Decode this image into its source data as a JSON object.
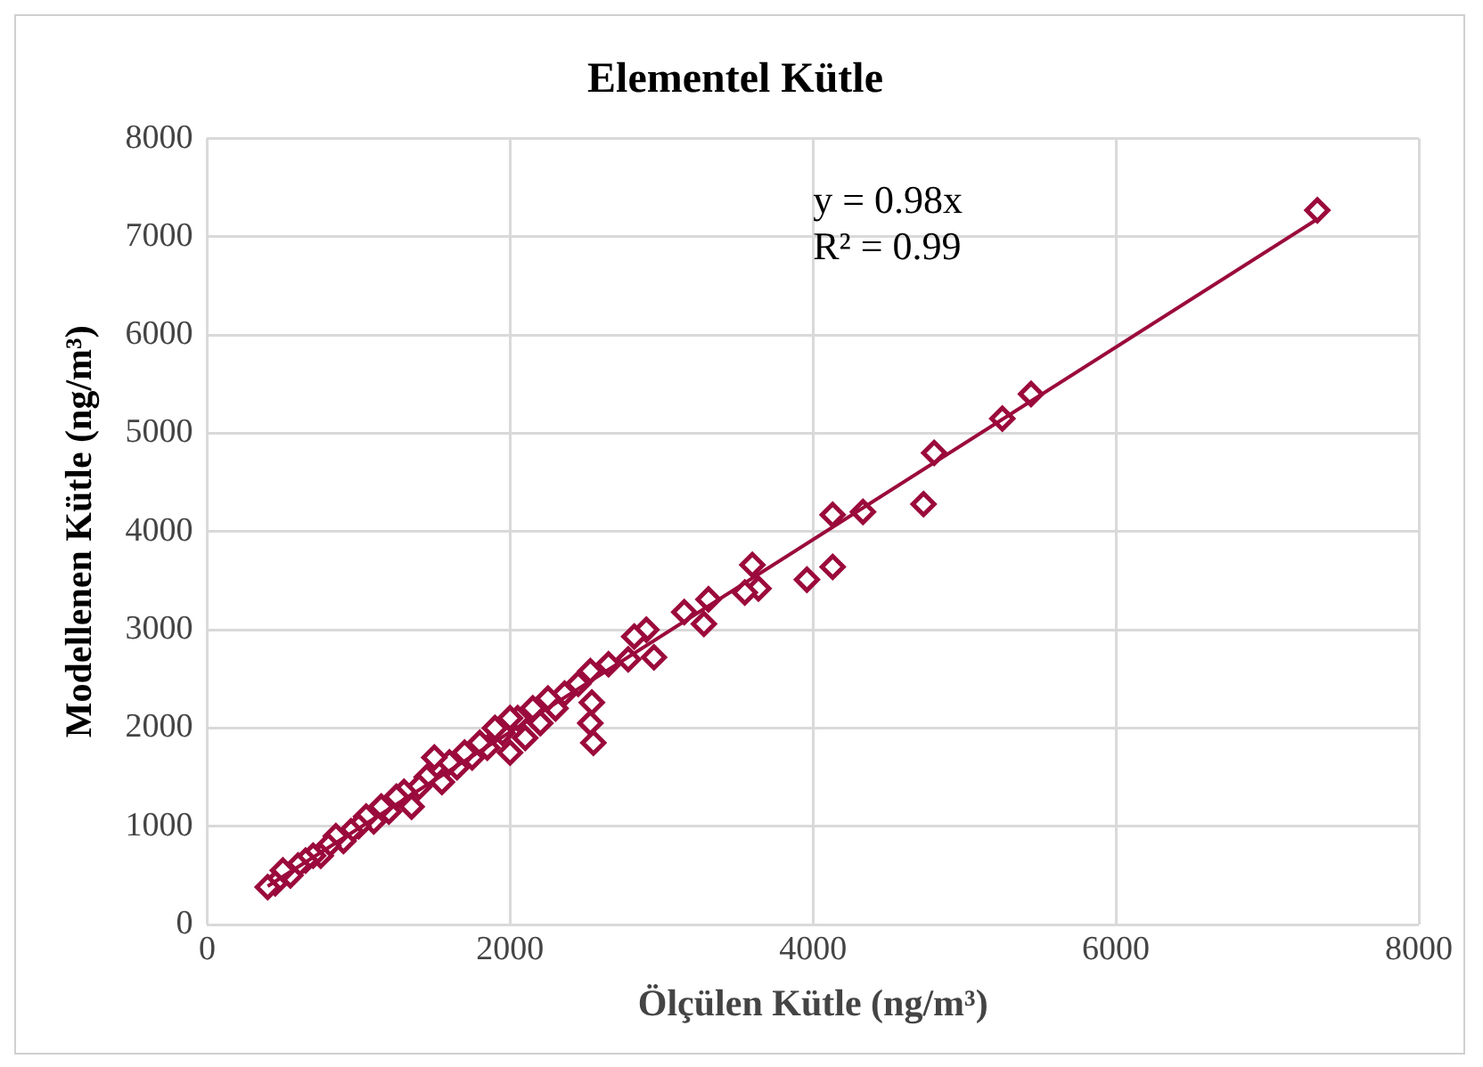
{
  "chart_data": {
    "type": "scatter",
    "title": "Elementel Kütle",
    "xlabel": "Ölçülen Kütle (ng/m³)",
    "ylabel": "Modellenen Kütle (ng/m³)",
    "xlim": [
      0,
      8000
    ],
    "ylim": [
      0,
      8000
    ],
    "xticks": [
      0,
      2000,
      4000,
      6000,
      8000
    ],
    "yticks": [
      0,
      1000,
      2000,
      3000,
      4000,
      5000,
      6000,
      7000,
      8000
    ],
    "grid": true,
    "legend": false,
    "annotations": [
      "y = 0.98x",
      "R² = 0.99"
    ],
    "series": [
      {
        "marker": "diamond",
        "color": "#9b0a3c",
        "x": [
          7330,
          5440,
          5250,
          4800,
          4730,
          4330,
          4130,
          4130,
          3960,
          3600,
          3640,
          3550,
          3310,
          3280,
          3150,
          2900,
          2950,
          2820,
          2780,
          2650,
          2530,
          2540,
          2530,
          2550,
          2450,
          2360,
          2300,
          2250,
          2200,
          2150,
          2100,
          2050,
          2000,
          2000,
          1950,
          1900,
          1850,
          1800,
          1750,
          1700,
          1650,
          1600,
          1550,
          1500,
          1450,
          1400,
          1350,
          1300,
          1250,
          1200,
          1150,
          1100,
          1050,
          1000,
          950,
          900,
          850,
          800,
          750,
          700,
          650,
          600,
          550,
          500,
          450,
          400
        ],
        "values": [
          7270,
          5400,
          5150,
          4800,
          4280,
          4200,
          4170,
          3640,
          3510,
          3660,
          3420,
          3380,
          3310,
          3060,
          3180,
          3000,
          2720,
          2930,
          2700,
          2650,
          2580,
          2260,
          2050,
          1850,
          2450,
          2350,
          2200,
          2300,
          2050,
          2200,
          1900,
          2100,
          2100,
          1750,
          1950,
          2000,
          1800,
          1850,
          1700,
          1750,
          1600,
          1650,
          1450,
          1700,
          1500,
          1400,
          1200,
          1350,
          1300,
          1150,
          1200,
          1050,
          1100,
          1000,
          950,
          850,
          900,
          800,
          700,
          700,
          650,
          600,
          500,
          550,
          420,
          380
        ]
      },
      {
        "type": "line",
        "marker": "none",
        "color": "#9b0a3c",
        "x": [
          400,
          7330
        ],
        "values": [
          390,
          7180
        ]
      }
    ]
  }
}
